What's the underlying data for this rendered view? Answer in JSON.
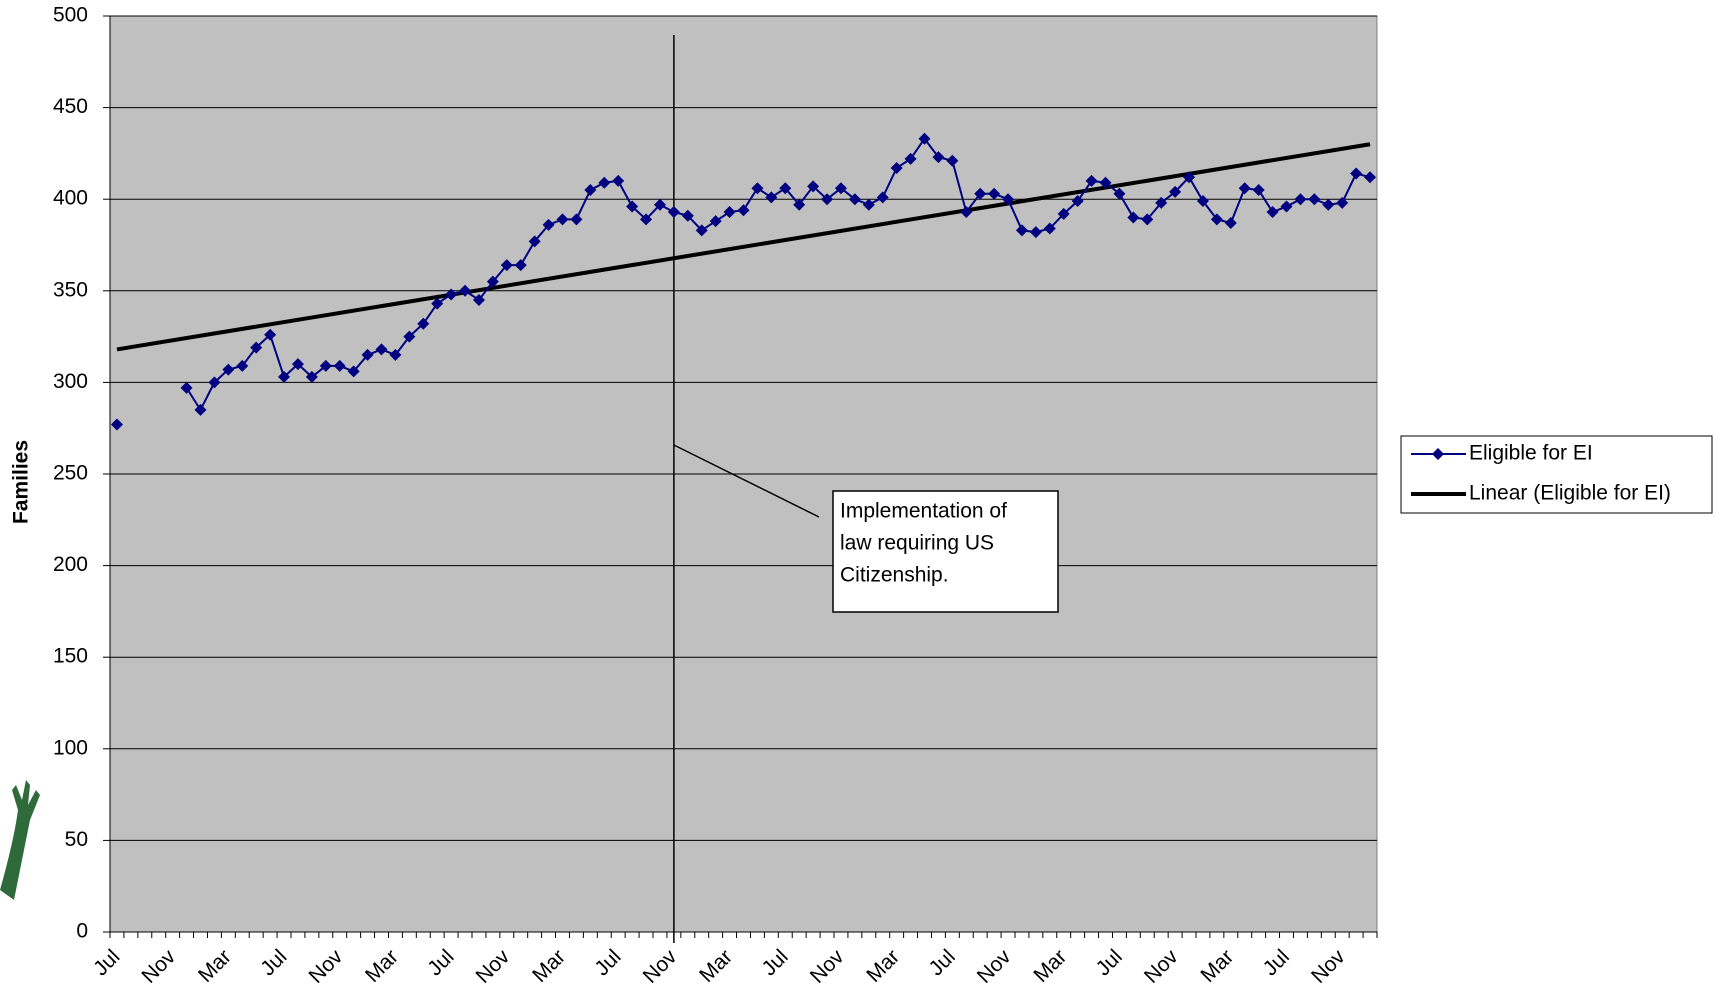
{
  "chart_data": {
    "type": "line",
    "y_axis_label": "Families",
    "ylim": [
      0,
      500
    ],
    "yticks": [
      0,
      50,
      100,
      150,
      200,
      250,
      300,
      350,
      400,
      450,
      500
    ],
    "grid": true,
    "background": "#c0c0c0",
    "categories": [
      "Jul",
      null,
      null,
      null,
      "Nov",
      null,
      null,
      null,
      "Mar",
      null,
      null,
      null,
      "Jul",
      null,
      null,
      null,
      "Nov",
      null,
      null,
      null,
      "Mar",
      null,
      null,
      null,
      "Jul",
      null,
      null,
      null,
      "Nov",
      null,
      null,
      null,
      "Mar",
      null,
      null,
      null,
      "Jul",
      null,
      null,
      null,
      "Nov",
      null,
      null,
      null,
      "Mar",
      null,
      null,
      null,
      "Jul",
      null,
      null,
      null,
      "Nov",
      null,
      null,
      null,
      "Mar",
      null,
      null,
      null,
      "Jul",
      null,
      null,
      null,
      "Nov",
      null,
      null,
      null,
      "Mar",
      null,
      null,
      null,
      "Jul",
      null,
      null,
      null,
      "Nov",
      null,
      null,
      null,
      "Mar",
      null,
      null,
      null,
      "Jul",
      null,
      null,
      null,
      "Nov",
      null,
      null
    ],
    "series": [
      {
        "name": "Eligible for EI",
        "color": "#000080",
        "values": [
          277,
          null,
          null,
          null,
          null,
          297,
          285,
          300,
          307,
          309,
          319,
          326,
          303,
          310,
          303,
          309,
          309,
          306,
          315,
          318,
          315,
          325,
          332,
          343,
          348,
          350,
          345,
          355,
          364,
          364,
          377,
          386,
          389,
          389,
          405,
          409,
          410,
          396,
          389,
          397,
          393,
          391,
          383,
          388,
          393,
          394,
          406,
          401,
          406,
          397,
          407,
          400,
          406,
          400,
          397,
          401,
          417,
          422,
          433,
          423,
          421,
          393,
          403,
          403,
          400,
          383,
          382,
          384,
          392,
          399,
          410,
          409,
          403,
          390,
          389,
          398,
          404,
          412,
          399,
          389,
          387,
          406,
          405,
          393,
          396,
          400,
          400,
          397,
          398,
          414,
          412
        ]
      }
    ],
    "trendline": {
      "name": "Linear (Eligible for EI)",
      "color": "#000000",
      "from": 318,
      "to": 430
    },
    "annotation": {
      "lines": [
        "Implementation of",
        "law requiring US",
        "Citizenship."
      ]
    },
    "legend": "right"
  }
}
